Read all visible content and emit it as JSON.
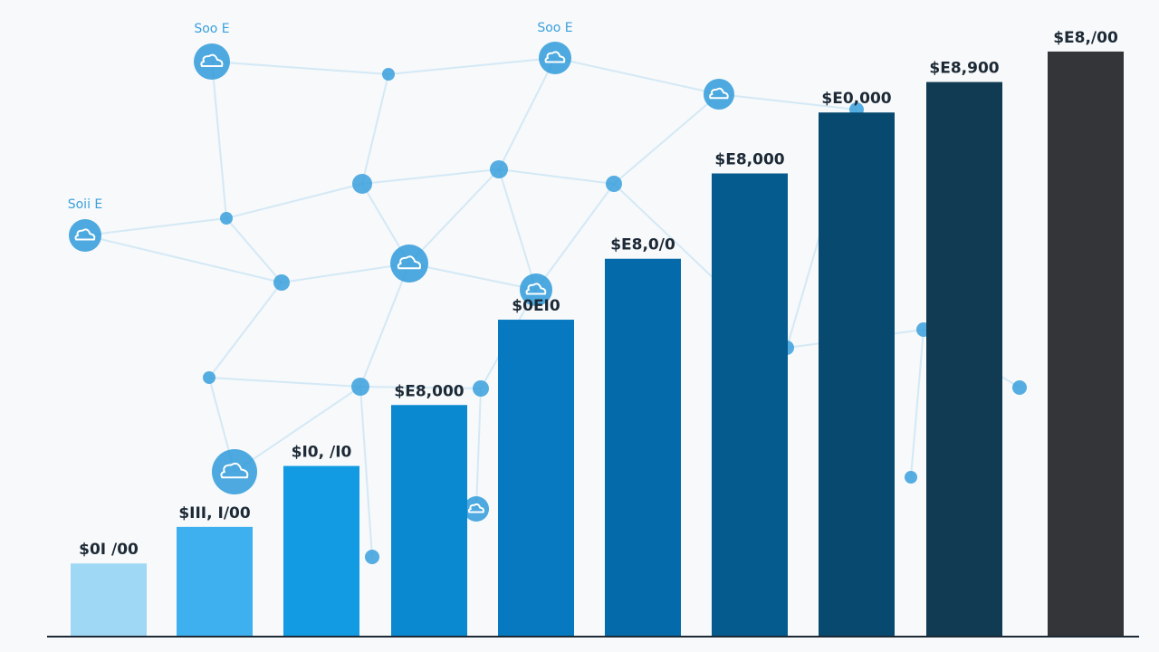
{
  "chart_data": {
    "type": "bar",
    "title": "",
    "xlabel": "",
    "ylabel": "",
    "ylim": [
      0,
      100
    ],
    "grid": false,
    "categories": [
      "",
      "",
      "",
      "",
      "",
      "",
      "",
      "",
      "",
      ""
    ],
    "values": [
      12,
      18,
      28,
      38,
      52,
      62,
      76,
      86,
      91,
      96
    ],
    "value_labels": [
      "$0I /00",
      "$III, I/00",
      "$I0, /I0",
      "$E8,000",
      "$0EI0",
      "$E8,0/0",
      "$E8,000",
      "$E0,000",
      "$E8,900",
      "$E8,/00"
    ],
    "colors": [
      "#9fd8f5",
      "#3fb0ef",
      "#129ae2",
      "#0a88d0",
      "#0679c1",
      "#056aa9",
      "#055a8e",
      "#07496f",
      "#103b52",
      "#333538"
    ],
    "background_network": {
      "color": "#3aa0dc",
      "node_labels": [
        "Soo E",
        "Soo E",
        "Soii E"
      ]
    }
  }
}
